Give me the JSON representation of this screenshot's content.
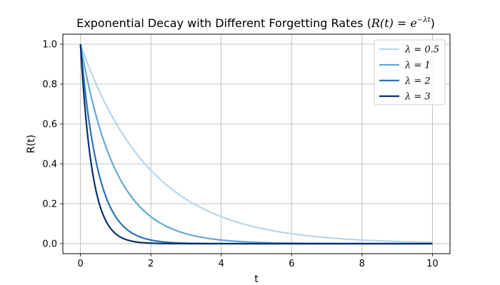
{
  "chart_data": {
    "type": "line",
    "title": "Exponential Decay with Different Forgetting Rates (R(t) = e^{−λt})",
    "title_main": "Exponential Decay with Different Forgetting Rates (",
    "title_math": "R(t) = e",
    "title_exp": "−λt",
    "title_end": ")",
    "xlabel": "t",
    "ylabel": "R(t)",
    "xlim": [
      -0.5,
      10.5
    ],
    "ylim": [
      -0.05,
      1.05
    ],
    "xticks": [
      0,
      2,
      4,
      6,
      8,
      10
    ],
    "xtick_labels": [
      "0",
      "2",
      "4",
      "6",
      "8",
      "10"
    ],
    "yticks": [
      0.0,
      0.2,
      0.4,
      0.6,
      0.8,
      1.0
    ],
    "ytick_labels": [
      "0.0",
      "0.2",
      "0.4",
      "0.6",
      "0.8",
      "1.0"
    ],
    "grid": true,
    "legend_position": "top-right",
    "function": "exp(-lambda*t)",
    "x_range": [
      0,
      10
    ],
    "series": [
      {
        "name": "λ = 0.5",
        "lambda": 0.5,
        "color": "#b9d6ea"
      },
      {
        "name": "λ = 1",
        "lambda": 1,
        "color": "#64a9d3"
      },
      {
        "name": "λ = 2",
        "lambda": 2,
        "color": "#2a73b6"
      },
      {
        "name": "λ = 3",
        "lambda": 3,
        "color": "#0c2f6b"
      }
    ]
  }
}
